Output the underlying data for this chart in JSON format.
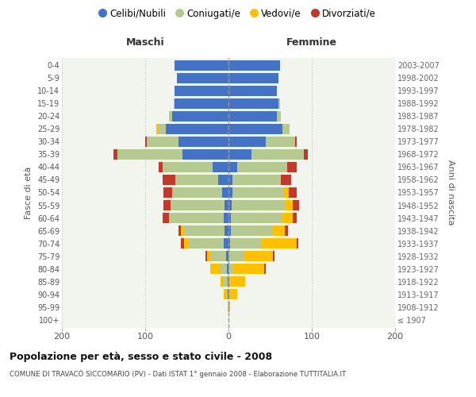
{
  "age_groups": [
    "100+",
    "95-99",
    "90-94",
    "85-89",
    "80-84",
    "75-79",
    "70-74",
    "65-69",
    "60-64",
    "55-59",
    "50-54",
    "45-49",
    "40-44",
    "35-39",
    "30-34",
    "25-29",
    "20-24",
    "15-19",
    "10-14",
    "5-9",
    "0-4"
  ],
  "birth_years": [
    "≤ 1907",
    "1908-1912",
    "1913-1917",
    "1918-1922",
    "1923-1927",
    "1928-1932",
    "1933-1937",
    "1938-1942",
    "1943-1947",
    "1948-1952",
    "1953-1957",
    "1958-1962",
    "1963-1967",
    "1968-1972",
    "1973-1977",
    "1978-1982",
    "1983-1987",
    "1988-1992",
    "1993-1997",
    "1998-2002",
    "2003-2007"
  ],
  "maschi": {
    "celibi": [
      0,
      0,
      1,
      1,
      2,
      3,
      6,
      5,
      6,
      5,
      8,
      12,
      19,
      55,
      60,
      75,
      68,
      65,
      65,
      62,
      65
    ],
    "coniugati": [
      0,
      0,
      2,
      5,
      8,
      18,
      42,
      48,
      65,
      65,
      60,
      52,
      60,
      78,
      38,
      10,
      3,
      1,
      0,
      0,
      0
    ],
    "vedovi": [
      0,
      1,
      3,
      4,
      12,
      5,
      5,
      4,
      0,
      0,
      0,
      0,
      0,
      0,
      0,
      2,
      0,
      0,
      0,
      0,
      0
    ],
    "divorziati": [
      0,
      0,
      0,
      0,
      0,
      2,
      4,
      3,
      8,
      8,
      10,
      15,
      5,
      5,
      2,
      0,
      0,
      0,
      0,
      0,
      0
    ]
  },
  "femmine": {
    "nubili": [
      0,
      0,
      0,
      0,
      0,
      0,
      2,
      3,
      3,
      4,
      5,
      5,
      10,
      28,
      45,
      65,
      58,
      60,
      58,
      60,
      62
    ],
    "coniugate": [
      0,
      0,
      2,
      2,
      5,
      18,
      38,
      50,
      62,
      65,
      62,
      58,
      60,
      62,
      35,
      8,
      5,
      2,
      0,
      0,
      0
    ],
    "vedove": [
      0,
      2,
      8,
      18,
      38,
      35,
      42,
      15,
      12,
      8,
      5,
      0,
      0,
      0,
      0,
      0,
      0,
      0,
      0,
      0,
      0
    ],
    "divorziate": [
      0,
      0,
      0,
      0,
      2,
      2,
      2,
      3,
      5,
      8,
      10,
      12,
      12,
      5,
      2,
      0,
      0,
      0,
      0,
      0,
      0
    ]
  },
  "colors": {
    "celibi": "#4472c4",
    "coniugati": "#b5c990",
    "vedovi": "#ffc000",
    "divorziati": "#c0392b"
  },
  "xlim": 200,
  "title": "Popolazione per età, sesso e stato civile - 2008",
  "subtitle": "COMUNE DI TRAVACÒ SICCOMARIO (PV) - Dati ISTAT 1° gennaio 2008 - Elaborazione TUTTITALIA.IT",
  "ylabel_left": "Fasce di età",
  "ylabel_right": "Anni di nascita",
  "xlabel_maschi": "Maschi",
  "xlabel_femmine": "Femmine",
  "legend_labels": [
    "Celibi/Nubili",
    "Coniugati/e",
    "Vedovi/e",
    "Divorziati/e"
  ],
  "bg_color": "#ffffff",
  "plot_bg": "#f2f5ee",
  "grid_color": "#cccccc"
}
